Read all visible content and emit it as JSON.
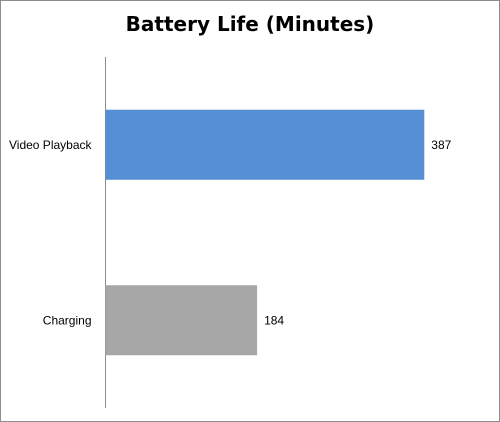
{
  "chart_data": {
    "type": "bar",
    "orientation": "horizontal",
    "title": "Battery Life (Minutes)",
    "xlabel": "",
    "ylabel": "",
    "categories": [
      "Video Playback",
      "Charging"
    ],
    "values": [
      387,
      184
    ],
    "colors": [
      "#558ed5",
      "#a6a6a6"
    ],
    "value_axis_range": [
      0,
      400
    ],
    "grid": false,
    "legend": "none",
    "data_labels": true
  }
}
